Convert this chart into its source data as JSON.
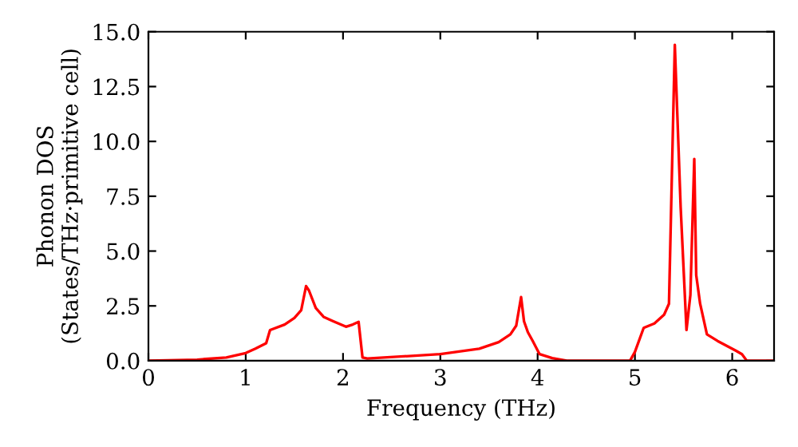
{
  "chart_data": {
    "type": "line",
    "xlabel": "Frequency (THz)",
    "ylabel": "Phonon DOS\n(States/THz·primitive cell)",
    "xlim": [
      0,
      6.43
    ],
    "ylim": [
      0,
      15
    ],
    "xticks": [
      0,
      1,
      2,
      3,
      4,
      5,
      6
    ],
    "yticks": [
      {
        "value": 0,
        "label": "0.0"
      },
      {
        "value": 2.5,
        "label": "2.5"
      },
      {
        "value": 5,
        "label": "5.0"
      },
      {
        "value": 7.5,
        "label": "7.5"
      },
      {
        "value": 10,
        "label": "10.0"
      },
      {
        "value": 12.5,
        "label": "12.5"
      },
      {
        "value": 15,
        "label": "15.0"
      }
    ],
    "grid": false,
    "legend": false,
    "marker": "none",
    "line_style": "solid",
    "series": [
      {
        "color": "#ff0000",
        "x": [
          0,
          0.5,
          0.8,
          1.0,
          1.1,
          1.21,
          1.25,
          1.4,
          1.5,
          1.57,
          1.62,
          1.65,
          1.72,
          1.8,
          1.9,
          2.03,
          2.1,
          2.16,
          2.2,
          2.25,
          3.0,
          3.4,
          3.6,
          3.72,
          3.78,
          3.83,
          3.86,
          3.9,
          3.95,
          4.02,
          4.15,
          4.3,
          4.95,
          5.0,
          5.09,
          5.2,
          5.3,
          5.35,
          5.41,
          5.47,
          5.53,
          5.57,
          5.61,
          5.63,
          5.67,
          5.74,
          5.85,
          6.04,
          6.1,
          6.15,
          6.43
        ],
        "values": [
          0,
          0.05,
          0.15,
          0.35,
          0.55,
          0.8,
          1.4,
          1.65,
          1.95,
          2.3,
          3.4,
          3.2,
          2.4,
          2.0,
          1.8,
          1.55,
          1.65,
          1.77,
          0.15,
          0.1,
          0.3,
          0.55,
          0.85,
          1.2,
          1.6,
          2.9,
          1.8,
          1.3,
          0.9,
          0.3,
          0.12,
          0,
          0,
          0.4,
          1.5,
          1.7,
          2.1,
          2.6,
          14.4,
          7.0,
          1.4,
          3.0,
          9.2,
          3.9,
          2.6,
          1.2,
          0.9,
          0.45,
          0.3,
          0,
          0
        ]
      }
    ]
  }
}
